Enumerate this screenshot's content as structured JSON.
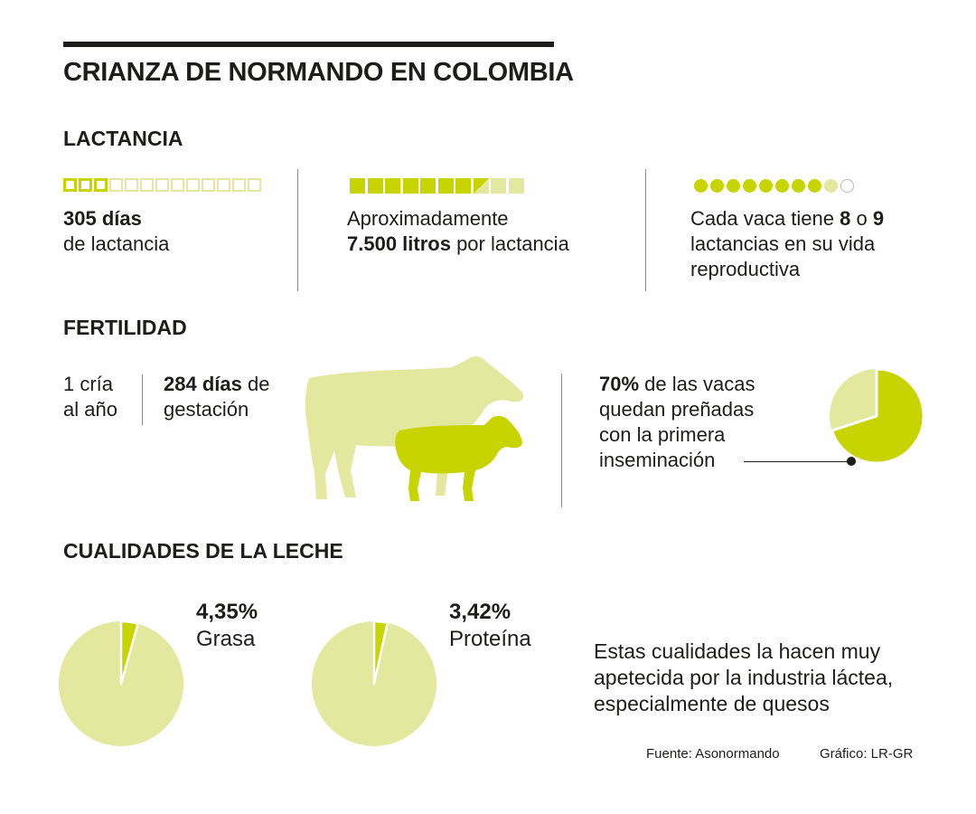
{
  "title": "CRIANZA DE NORMANDO EN COLOMBIA",
  "colors": {
    "accent": "#c8d400",
    "light": "#e3e89f",
    "text": "#1d1d1b"
  },
  "lactancia": {
    "heading": "LACTANCIA",
    "days": {
      "bold": "305 días",
      "rest": "de lactancia",
      "icon": "squares-outline",
      "highlighted": 3,
      "total": 13
    },
    "liters": {
      "line1": "Aproximadamente",
      "bold": "7.500 litros",
      "rest": " por lactancia",
      "icon": "squares-filled",
      "filled": 7.5,
      "total": 10
    },
    "count": {
      "pre": "Cada vaca tiene ",
      "a": "8",
      "mid": " o ",
      "b": "9",
      "line2": "lactancias en su vida",
      "line3": "reproductiva",
      "icon": "dots",
      "filled": 8,
      "light": 1,
      "total": 10
    }
  },
  "fertilidad": {
    "heading": "FERTILIDAD",
    "cria": {
      "line1": "1 cría",
      "line2": "al año"
    },
    "gestacion": {
      "bold": "284 días",
      "rest": " de",
      "line2": "gestación"
    },
    "cows_icon": "cow-and-calf-icon",
    "prenez": {
      "bold": "70%",
      "rest": " de las vacas",
      "line2": "quedan preñadas",
      "line3": "con la primera",
      "line4": "inseminación",
      "value": 70
    }
  },
  "leche": {
    "heading": "CUALIDADES DE LA LECHE",
    "grasa": {
      "value_label": "4,35%",
      "label": "Grasa",
      "value": 4.35
    },
    "proteina": {
      "value_label": "3,42%",
      "label": "Proteína",
      "value": 3.42
    },
    "note": {
      "line1": "Estas cualidades la hacen muy",
      "line2": "apetecida por la industria láctea,",
      "line3": "especialmente de quesos"
    }
  },
  "footer": {
    "source": "Fuente: Asonormando",
    "credit": "Gráfico: LR-GR"
  }
}
